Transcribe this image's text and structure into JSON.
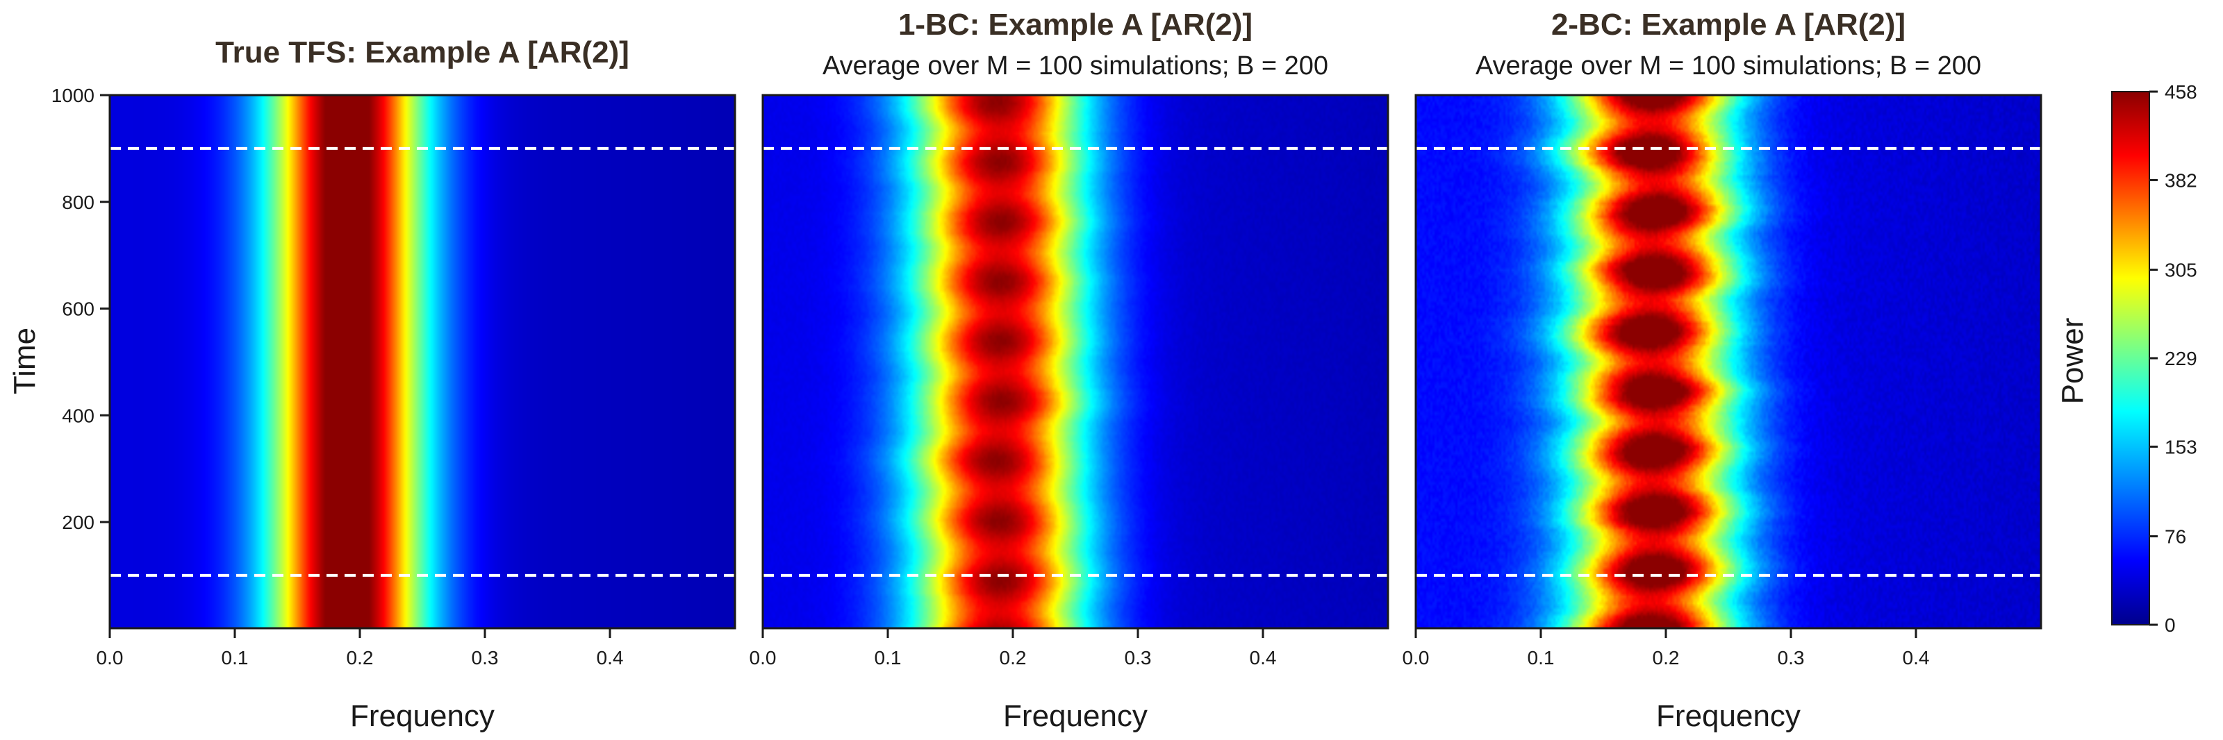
{
  "chart_data": {
    "type": "heatmap",
    "x": {
      "label": "Frequency",
      "range": [
        0,
        0.5
      ],
      "ticks": [
        0.0,
        0.1,
        0.2,
        0.3,
        0.4
      ],
      "tick_labels": [
        "0.0",
        "0.1",
        "0.2",
        "0.3",
        "0.4"
      ]
    },
    "y": {
      "label": "Time",
      "range": [
        1,
        1000
      ],
      "ticks": [
        200,
        400,
        600,
        800,
        1000
      ],
      "tick_labels": [
        "200",
        "400",
        "600",
        "800",
        "1000"
      ]
    },
    "reference_lines_time": [
      100,
      900
    ],
    "colorbar": {
      "label": "Power",
      "range": [
        0,
        458
      ],
      "ticks": [
        0,
        76,
        153,
        229,
        305,
        382,
        458
      ],
      "tick_labels": [
        "0",
        "76",
        "153",
        "229",
        "305",
        "382",
        "458"
      ],
      "colormap": [
        "#00008b",
        "#0000ff",
        "#00ffff",
        "#ffff00",
        "#ff0000",
        "#8b0000"
      ]
    },
    "panels": [
      {
        "title": "True TFS: Example A   [AR(2)]",
        "subtitle": "",
        "peak_frequency": 0.19,
        "peak_power": 458,
        "peak_width": 0.045,
        "baseline_power": 40,
        "noise": 0
      },
      {
        "title": "1-BC: Example A   [AR(2)]",
        "subtitle": "Average over M = 100 simulations;  B = 200",
        "peak_frequency": 0.19,
        "peak_power": 400,
        "peak_width": 0.05,
        "baseline_power": 45,
        "noise": 0.15
      },
      {
        "title": "2-BC: Example A   [AR(2)]",
        "subtitle": "Average over M = 100 simulations;  B = 200",
        "peak_frequency": 0.19,
        "peak_power": 410,
        "peak_width": 0.047,
        "baseline_power": 60,
        "noise": 0.35
      }
    ]
  }
}
